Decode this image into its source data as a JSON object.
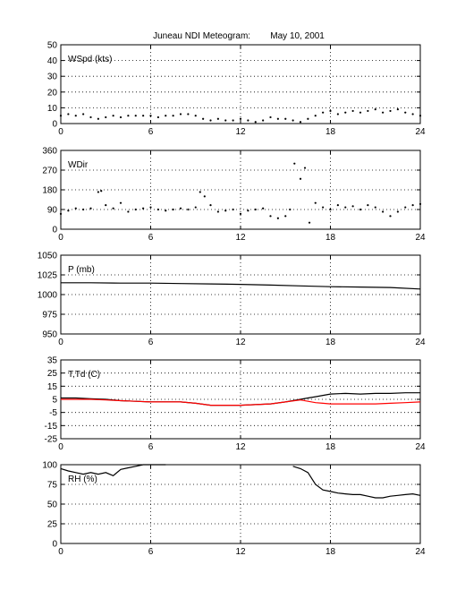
{
  "title": "Juneau NDI Meteogram:        May 10, 2001",
  "x_ticks": [
    "0",
    "6",
    "12",
    "18",
    "24"
  ],
  "chart_data": [
    {
      "type": "scatter",
      "label": "WSpd (kts)",
      "xlim": [
        0,
        24
      ],
      "ylim": [
        0,
        50
      ],
      "yticks": [
        "50",
        "40",
        "30",
        "20",
        "10",
        "0"
      ],
      "grid": true,
      "series": [
        {
          "color": "#000000",
          "x": [
            0,
            0.5,
            1,
            1.5,
            2,
            2.5,
            3,
            3.5,
            4,
            4.5,
            5,
            5.5,
            6,
            6.5,
            7,
            7.5,
            8,
            8.5,
            9,
            9.5,
            10,
            10.5,
            11,
            11.5,
            12,
            12.5,
            13,
            13.5,
            14,
            14.5,
            15,
            15.5,
            16,
            16.5,
            17,
            17.5,
            18,
            18.5,
            19,
            19.5,
            20,
            20.5,
            21,
            21.5,
            22,
            22.5,
            23,
            23.5,
            24
          ],
          "values": [
            5,
            6,
            5,
            6,
            4,
            3,
            4,
            5,
            4,
            5,
            5,
            5,
            5,
            4,
            5,
            5,
            6,
            6,
            5,
            3,
            2,
            3,
            2,
            2,
            3,
            2,
            1,
            2,
            4,
            3,
            3,
            2,
            1,
            3,
            5,
            7,
            8,
            6,
            7,
            8,
            7,
            8,
            9,
            7,
            8,
            9,
            7,
            6,
            5
          ]
        }
      ]
    },
    {
      "type": "scatter",
      "label": "WDir",
      "xlim": [
        0,
        24
      ],
      "ylim": [
        0,
        360
      ],
      "yticks": [
        "360",
        "270",
        "180",
        "90",
        "0"
      ],
      "grid": true,
      "series": [
        {
          "color": "#000000",
          "x": [
            0,
            0.5,
            1,
            1.5,
            2,
            2.5,
            2.7,
            3,
            3.5,
            4,
            4.5,
            5,
            5.5,
            6,
            6.5,
            7,
            7.5,
            8,
            8.5,
            9,
            9.3,
            9.6,
            10,
            10.5,
            11,
            11.5,
            12,
            12.5,
            13,
            13.5,
            14,
            14.5,
            15,
            15.3,
            15.6,
            16,
            16.3,
            16.6,
            17,
            17.5,
            18,
            18.5,
            19,
            19.5,
            20,
            20.5,
            21,
            21.5,
            22,
            22.5,
            23,
            23.5,
            24
          ],
          "values": [
            70,
            85,
            95,
            90,
            95,
            170,
            175,
            110,
            95,
            120,
            80,
            90,
            95,
            100,
            90,
            85,
            90,
            95,
            90,
            100,
            170,
            150,
            110,
            80,
            85,
            90,
            70,
            85,
            90,
            95,
            60,
            50,
            60,
            90,
            300,
            230,
            280,
            30,
            120,
            100,
            90,
            110,
            100,
            105,
            90,
            110,
            100,
            80,
            60,
            80,
            100,
            110,
            115
          ]
        }
      ]
    },
    {
      "type": "line",
      "label": "P (mb)",
      "xlim": [
        0,
        24
      ],
      "ylim": [
        950,
        1050
      ],
      "yticks": [
        "1050",
        "1025",
        "1000",
        "975",
        "950"
      ],
      "grid": true,
      "series": [
        {
          "color": "#000000",
          "x": [
            0,
            2,
            4,
            6,
            8,
            10,
            12,
            14,
            16,
            18,
            20,
            22,
            24
          ],
          "values": [
            1015,
            1015,
            1014.5,
            1014.5,
            1014,
            1013.5,
            1013,
            1012,
            1011,
            1010,
            1009.5,
            1009,
            1007
          ]
        }
      ]
    },
    {
      "type": "line",
      "label": "T,Td (C)",
      "xlim": [
        0,
        24
      ],
      "ylim": [
        -25,
        35
      ],
      "yticks": [
        "35",
        "25",
        "15",
        "5",
        "-5",
        "-15",
        "-25"
      ],
      "grid": true,
      "series": [
        {
          "color": "#000000",
          "x": [
            0,
            1,
            2,
            3,
            4,
            5,
            6,
            7,
            8,
            9,
            10,
            11,
            12,
            13,
            14,
            15,
            16,
            16.5,
            17,
            17.5,
            18,
            19,
            20,
            21,
            22,
            23,
            24
          ],
          "values": [
            6,
            6,
            5.5,
            5,
            4,
            3.5,
            3,
            3,
            3,
            2,
            0.5,
            0.5,
            0.5,
            1,
            1.5,
            3,
            5,
            6,
            7,
            8,
            9,
            9.5,
            9,
            9.5,
            9.5,
            10,
            10
          ]
        },
        {
          "color": "#ff0000",
          "x": [
            0,
            1,
            2,
            3,
            4,
            5,
            6,
            7,
            8,
            9,
            10,
            11,
            12,
            13,
            14,
            15,
            16,
            16.5,
            17,
            17.5,
            18,
            19,
            20,
            21,
            22,
            23,
            24
          ],
          "values": [
            5,
            5,
            5,
            4.5,
            4,
            3.5,
            3,
            3,
            3,
            2,
            0.5,
            0.5,
            0.5,
            1,
            1.5,
            3,
            4.5,
            3.5,
            2.5,
            2,
            1.5,
            1.5,
            1.5,
            1.5,
            2,
            2.5,
            3
          ]
        }
      ]
    },
    {
      "type": "line",
      "label": "RH (%)",
      "xlim": [
        0,
        24
      ],
      "ylim": [
        0,
        100
      ],
      "yticks": [
        "100",
        "75",
        "50",
        "25",
        "0"
      ],
      "grid": true,
      "series": [
        {
          "color": "#000000",
          "x": [
            0,
            0.5,
            1,
            1.5,
            2,
            2.5,
            3,
            3.5,
            4,
            4.5,
            5,
            5.5,
            6,
            6.5,
            7
          ],
          "values": [
            95,
            92,
            90,
            88,
            90,
            88,
            90,
            86,
            94,
            96,
            98,
            100,
            100,
            100,
            100
          ]
        },
        {
          "color": "#000000",
          "x": [
            15.5,
            16,
            16.5,
            17,
            17.5,
            18,
            18.5,
            19,
            19.5,
            20,
            20.5,
            21,
            21.5,
            22,
            22.5,
            23,
            23.5,
            24
          ],
          "values": [
            98,
            95,
            90,
            75,
            68,
            66,
            64,
            63,
            62,
            62,
            60,
            58,
            58,
            60,
            61,
            62,
            63,
            61
          ]
        }
      ]
    }
  ]
}
